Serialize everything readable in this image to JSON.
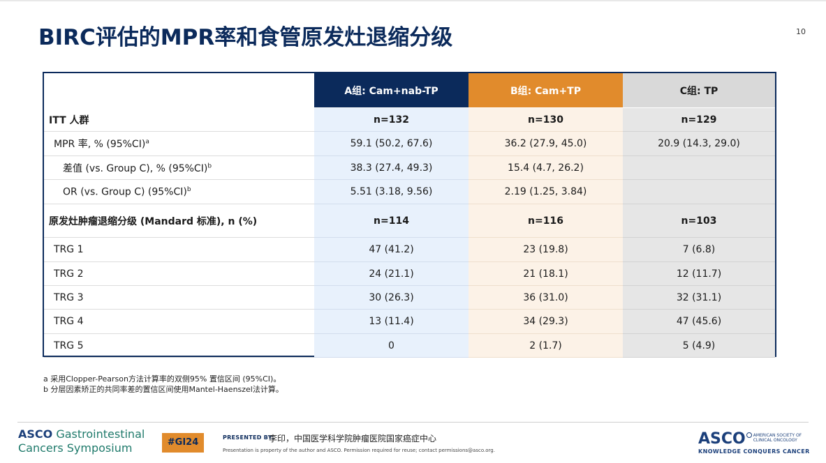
{
  "slide": {
    "title": "BIRC评估的MPR率和食管原发灶退缩分级",
    "page_number": "10"
  },
  "table": {
    "headers": [
      "",
      "A组: Cam+nab-TP",
      "B组: Cam+TP",
      "C组: TP"
    ],
    "group_colors": {
      "A": "#0b2a5b",
      "B": "#e18b2c",
      "C": "#d9d9d9"
    },
    "rows": [
      {
        "label": "ITT 人群",
        "sup": "",
        "bold": true,
        "indent": 0,
        "a": "n=132",
        "b": "n=130",
        "c": "n=129"
      },
      {
        "label": "MPR 率, % (95%CI)",
        "sup": "a",
        "bold": false,
        "indent": 1,
        "a": "59.1 (50.2, 67.6)",
        "b": "36.2 (27.9, 45.0)",
        "c": "20.9 (14.3, 29.0)"
      },
      {
        "label": "差值 (vs. Group C), % (95%CI)",
        "sup": "b",
        "bold": false,
        "indent": 2,
        "a": "38.3 (27.4, 49.3)",
        "b": "15.4 (4.7, 26.2)",
        "c": ""
      },
      {
        "label": "OR (vs. Group C) (95%CI)",
        "sup": "b",
        "bold": false,
        "indent": 2,
        "a": "5.51 (3.18, 9.56)",
        "b": "2.19 (1.25, 3.84)",
        "c": ""
      },
      {
        "label": "原发灶肿瘤退缩分级 (Mandard 标准), n (%)",
        "sup": "",
        "bold": true,
        "indent": 0,
        "a": "n=114",
        "b": "n=116",
        "c": "n=103"
      },
      {
        "label": "TRG 1",
        "sup": "",
        "bold": false,
        "indent": 1,
        "a": "47 (41.2)",
        "b": "23 (19.8)",
        "c": "7 (6.8)"
      },
      {
        "label": "TRG 2",
        "sup": "",
        "bold": false,
        "indent": 1,
        "a": "24 (21.1)",
        "b": "21 (18.1)",
        "c": "12 (11.7)"
      },
      {
        "label": "TRG 3",
        "sup": "",
        "bold": false,
        "indent": 1,
        "a": "30 (26.3)",
        "b": "36 (31.0)",
        "c": "32 (31.1)"
      },
      {
        "label": "TRG 4",
        "sup": "",
        "bold": false,
        "indent": 1,
        "a": "13 (11.4)",
        "b": "34 (29.3)",
        "c": "47 (45.6)"
      },
      {
        "label": "TRG 5",
        "sup": "",
        "bold": false,
        "indent": 1,
        "a": "0",
        "b": "2 (1.7)",
        "c": "5 (4.9)"
      }
    ]
  },
  "footnotes": [
    "a 采用Clopper-Pearson方法计算率的双侧95% 置信区间 (95%CI)。",
    "b 分层因素矫正的共同率差的置信区间使用Mantel-Haenszel法计算。"
  ],
  "footer": {
    "left_logo_line1_bold": "ASCO",
    "left_logo_line1_rest": "Gastrointestinal",
    "left_logo_line2": "Cancers Symposium",
    "hashtag": "#GI24",
    "presented_by_label": "PRESENTED BY:",
    "presenter": "李印，中国医学科学院肿瘤医院国家癌症中心",
    "disclaimer": "Presentation is property of the author and ASCO. Permission required for reuse; contact permissions@asco.org.",
    "right_logo_big": "ASCO",
    "right_logo_small_1": "AMERICAN SOCIETY OF",
    "right_logo_small_2": "CLINICAL ONCOLOGY",
    "right_logo_tagline": "KNOWLEDGE CONQUERS CANCER"
  }
}
